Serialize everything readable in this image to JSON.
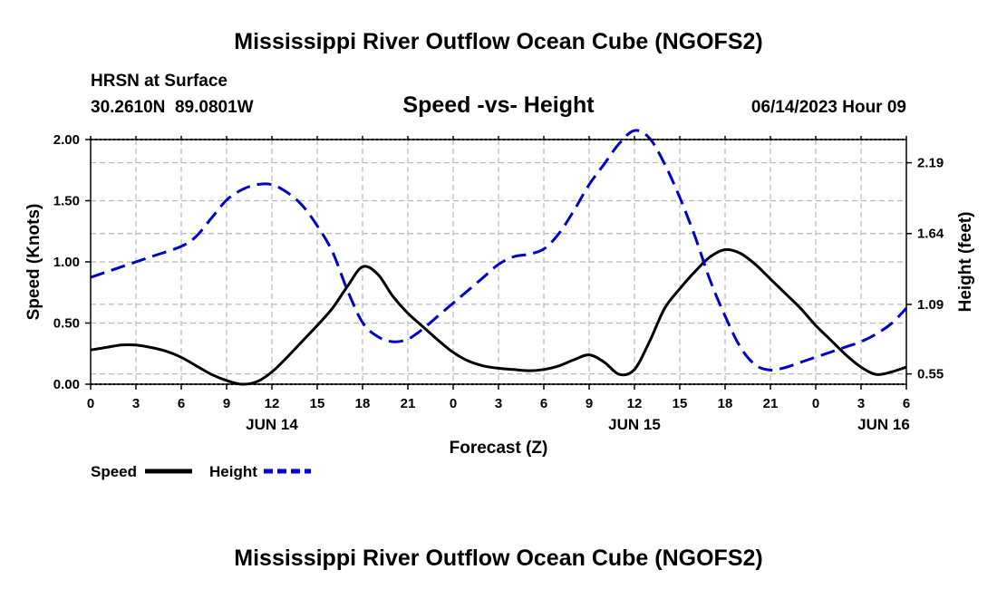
{
  "chart_data": {
    "type": "line",
    "title": "Mississippi River Outflow Ocean Cube (NGOFS2)",
    "footer_title": "Mississippi River Outflow Ocean Cube (NGOFS2)",
    "station": "HRSN at Surface",
    "location": "30.2610N  89.0801W",
    "subtitle": "Speed -vs- Height",
    "timestamp": "06/14/2023 Hour 09",
    "xlabel": "Forecast (Z)",
    "ylabel_left": "Speed (Knots)",
    "ylabel_right": "Height (feet)",
    "x_range_hours": [
      0,
      54
    ],
    "y_left_range": [
      0,
      2.0
    ],
    "y_right_range_feet": [
      0.47,
      2.37
    ],
    "grid": true,
    "x_ticks": [
      {
        "hour": 0,
        "label": "0"
      },
      {
        "hour": 3,
        "label": "3"
      },
      {
        "hour": 6,
        "label": "6"
      },
      {
        "hour": 9,
        "label": "9"
      },
      {
        "hour": 12,
        "label": "12"
      },
      {
        "hour": 15,
        "label": "15"
      },
      {
        "hour": 18,
        "label": "18"
      },
      {
        "hour": 21,
        "label": "21"
      },
      {
        "hour": 24,
        "label": "0"
      },
      {
        "hour": 27,
        "label": "3"
      },
      {
        "hour": 30,
        "label": "6"
      },
      {
        "hour": 33,
        "label": "9"
      },
      {
        "hour": 36,
        "label": "12"
      },
      {
        "hour": 39,
        "label": "15"
      },
      {
        "hour": 42,
        "label": "18"
      },
      {
        "hour": 45,
        "label": "21"
      },
      {
        "hour": 48,
        "label": "0"
      },
      {
        "hour": 51,
        "label": "3"
      },
      {
        "hour": 54,
        "label": "6"
      }
    ],
    "date_labels": [
      {
        "hour": 12,
        "label": "JUN 14"
      },
      {
        "hour": 36,
        "label": "JUN 15"
      },
      {
        "hour": 52.5,
        "label": "JUN 16"
      }
    ],
    "y_left_ticks": [
      {
        "value": 0,
        "label": "0.00"
      },
      {
        "value": 0.5,
        "label": "0.50"
      },
      {
        "value": 1.0,
        "label": "1.00"
      },
      {
        "value": 1.5,
        "label": "1.50"
      },
      {
        "value": 2.0,
        "label": "2.00"
      }
    ],
    "y_right_ticks": [
      {
        "value": 0.55,
        "label": "0.55"
      },
      {
        "value": 1.09,
        "label": "1.09"
      },
      {
        "value": 1.64,
        "label": "1.64"
      },
      {
        "value": 2.19,
        "label": "2.19"
      }
    ],
    "series": [
      {
        "name": "Speed",
        "axis": "left",
        "color": "#000000",
        "style": "solid",
        "points": [
          [
            0,
            0.28
          ],
          [
            1,
            0.3
          ],
          [
            2,
            0.32
          ],
          [
            3,
            0.32
          ],
          [
            4,
            0.3
          ],
          [
            5,
            0.27
          ],
          [
            6,
            0.22
          ],
          [
            7,
            0.15
          ],
          [
            8,
            0.08
          ],
          [
            9,
            0.03
          ],
          [
            10,
            0.0
          ],
          [
            11,
            0.02
          ],
          [
            12,
            0.1
          ],
          [
            13,
            0.22
          ],
          [
            14,
            0.35
          ],
          [
            15,
            0.48
          ],
          [
            16,
            0.62
          ],
          [
            17,
            0.8
          ],
          [
            18,
            0.96
          ],
          [
            19,
            0.9
          ],
          [
            20,
            0.72
          ],
          [
            21,
            0.58
          ],
          [
            22,
            0.47
          ],
          [
            23,
            0.36
          ],
          [
            24,
            0.26
          ],
          [
            25,
            0.19
          ],
          [
            26,
            0.15
          ],
          [
            27,
            0.13
          ],
          [
            28,
            0.12
          ],
          [
            29,
            0.11
          ],
          [
            30,
            0.12
          ],
          [
            31,
            0.15
          ],
          [
            32,
            0.2
          ],
          [
            33,
            0.24
          ],
          [
            34,
            0.18
          ],
          [
            35,
            0.08
          ],
          [
            36,
            0.12
          ],
          [
            37,
            0.35
          ],
          [
            38,
            0.62
          ],
          [
            39,
            0.78
          ],
          [
            40,
            0.92
          ],
          [
            41,
            1.04
          ],
          [
            42,
            1.1
          ],
          [
            43,
            1.07
          ],
          [
            44,
            0.98
          ],
          [
            45,
            0.86
          ],
          [
            46,
            0.74
          ],
          [
            47,
            0.62
          ],
          [
            48,
            0.48
          ],
          [
            49,
            0.36
          ],
          [
            50,
            0.24
          ],
          [
            51,
            0.14
          ],
          [
            52,
            0.08
          ],
          [
            53,
            0.1
          ],
          [
            54,
            0.14
          ]
        ]
      },
      {
        "name": "Height",
        "axis": "right",
        "color": "#0000cc",
        "style": "dashed",
        "points": [
          [
            0,
            1.3
          ],
          [
            2,
            1.38
          ],
          [
            4,
            1.46
          ],
          [
            6,
            1.54
          ],
          [
            7,
            1.62
          ],
          [
            8,
            1.76
          ],
          [
            9,
            1.9
          ],
          [
            10,
            1.98
          ],
          [
            11,
            2.02
          ],
          [
            12,
            2.02
          ],
          [
            13,
            1.96
          ],
          [
            14,
            1.86
          ],
          [
            15,
            1.7
          ],
          [
            16,
            1.5
          ],
          [
            17,
            1.2
          ],
          [
            18,
            0.95
          ],
          [
            19,
            0.84
          ],
          [
            20,
            0.8
          ],
          [
            21,
            0.82
          ],
          [
            22,
            0.9
          ],
          [
            23,
            1.0
          ],
          [
            24,
            1.1
          ],
          [
            25,
            1.2
          ],
          [
            26,
            1.3
          ],
          [
            27,
            1.4
          ],
          [
            28,
            1.46
          ],
          [
            29,
            1.48
          ],
          [
            30,
            1.52
          ],
          [
            31,
            1.64
          ],
          [
            32,
            1.82
          ],
          [
            33,
            2.02
          ],
          [
            34,
            2.18
          ],
          [
            35,
            2.34
          ],
          [
            36,
            2.44
          ],
          [
            37,
            2.38
          ],
          [
            38,
            2.18
          ],
          [
            39,
            1.92
          ],
          [
            40,
            1.62
          ],
          [
            41,
            1.28
          ],
          [
            42,
            1.0
          ],
          [
            43,
            0.76
          ],
          [
            44,
            0.62
          ],
          [
            45,
            0.58
          ],
          [
            46,
            0.6
          ],
          [
            47,
            0.64
          ],
          [
            48,
            0.68
          ],
          [
            49,
            0.72
          ],
          [
            50,
            0.76
          ],
          [
            51,
            0.8
          ],
          [
            52,
            0.86
          ],
          [
            53,
            0.94
          ],
          [
            54,
            1.06
          ]
        ]
      }
    ],
    "legend": [
      {
        "label": "Speed",
        "color": "#000000",
        "style": "solid"
      },
      {
        "label": "Height",
        "color": "#0000cc",
        "style": "dashed"
      }
    ]
  }
}
